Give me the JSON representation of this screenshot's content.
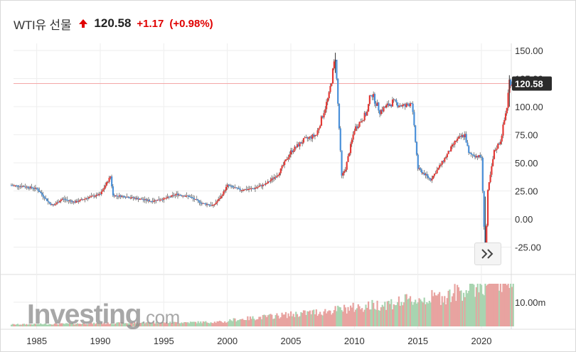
{
  "header": {
    "title": "WTI유 선물",
    "price": "120.58",
    "change": "+1.17",
    "change_pct": "(+0.98%)",
    "up_color": "#e00000"
  },
  "watermark": {
    "brand": "Investing",
    "suffix": ".com"
  },
  "price_tag": "120.58",
  "nav_icon": "double-chevron-right-icon",
  "chart_data": {
    "type": "line",
    "x_axis": {
      "type": "date",
      "ticks": [
        "1985",
        "1990",
        "1995",
        "2000",
        "2005",
        "2010",
        "2015",
        "2020"
      ],
      "range": [
        1983,
        2022.5
      ]
    },
    "price_axis": {
      "ticks": [
        "150.00",
        "125.00",
        "100.00",
        "75.00",
        "50.00",
        "25.00",
        "0.00",
        "-25.00"
      ],
      "range": [
        -37,
        150
      ],
      "side": "right"
    },
    "volume_axis": {
      "ticks": [
        "10.00m"
      ],
      "side": "right"
    },
    "current_price_line": 120.58,
    "colors": {
      "up": "#e53935",
      "down": "#4a90d9",
      "gridline": "#eeeeee",
      "current_line": "#f4a7a7",
      "volume_up": "#e8a3a0",
      "volume_down": "#a8d4b0"
    },
    "series": [
      {
        "x": [
          1983,
          1984,
          1985,
          1986,
          1986.3,
          1987,
          1988,
          1989,
          1990,
          1990.8,
          1991,
          1992,
          1993,
          1994,
          1995,
          1996,
          1997,
          1998,
          1998.9,
          1999.5,
          2000,
          2001,
          2002,
          2003,
          2004,
          2005,
          2006,
          2007,
          2008,
          2008.5,
          2009,
          2009.3,
          2010,
          2011,
          2011.3,
          2012,
          2013,
          2014,
          2014.5,
          2015,
          2016,
          2017,
          2018,
          2018.7,
          2019,
          2020,
          2020.3,
          2020.5,
          2021,
          2021.5,
          2022,
          2022.2,
          2022.5
        ],
        "close": [
          30,
          29,
          27,
          14,
          12,
          18,
          15,
          19,
          22,
          38,
          21,
          20,
          18,
          16,
          18,
          22,
          20,
          14,
          12,
          20,
          30,
          26,
          27,
          31,
          40,
          60,
          70,
          75,
          110,
          145,
          38,
          45,
          80,
          95,
          113,
          96,
          104,
          100,
          105,
          45,
          35,
          52,
          70,
          75,
          58,
          55,
          -37,
          25,
          60,
          70,
          100,
          123,
          120.58
        ]
      }
    ]
  }
}
